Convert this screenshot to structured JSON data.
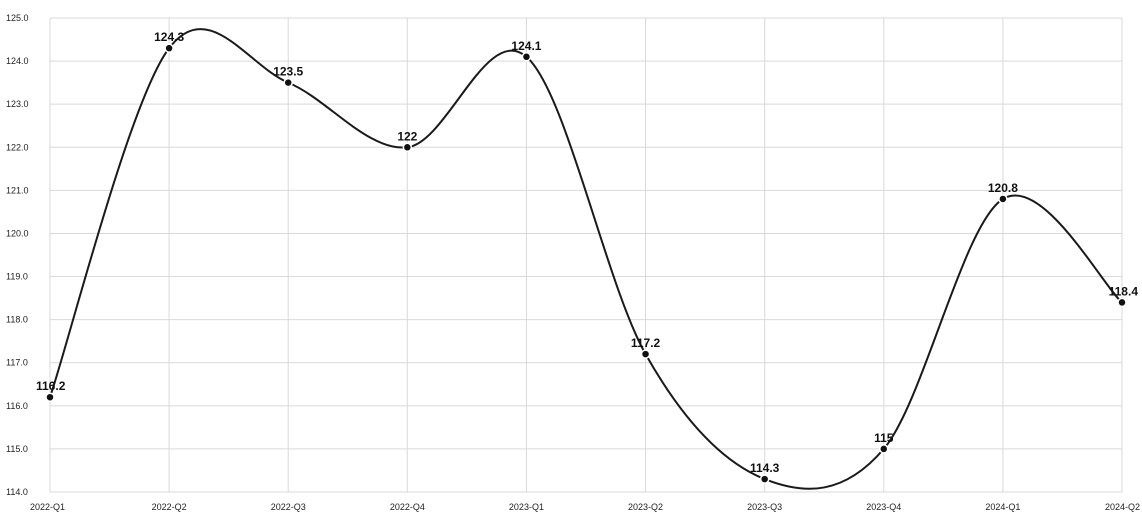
{
  "chart_data": {
    "type": "line",
    "title": "",
    "xlabel": "",
    "ylabel": "",
    "categories": [
      "2022-Q1",
      "2022-Q2",
      "2022-Q3",
      "2022-Q4",
      "2023-Q1",
      "2023-Q2",
      "2023-Q3",
      "2023-Q4",
      "2024-Q1",
      "2024-Q2"
    ],
    "series": [
      {
        "values": [
          116.2,
          124.3,
          123.5,
          122,
          124.1,
          117.2,
          114.3,
          115,
          120.8,
          118.4
        ],
        "labels": [
          "116.2",
          "124.3",
          "123.5",
          "122",
          "124.1",
          "117.2",
          "114.3",
          "115",
          "120.8",
          "118.4"
        ]
      }
    ],
    "ylim": [
      114.0,
      125.0
    ],
    "yticks": [
      "114.0",
      "115.0",
      "116.0",
      "117.0",
      "118.0",
      "119.0",
      "120.0",
      "121.0",
      "122.0",
      "123.0",
      "124.0",
      "125.0"
    ],
    "grid": true,
    "legend": "none",
    "line_color": "#1a1a1a",
    "smooth": true
  }
}
